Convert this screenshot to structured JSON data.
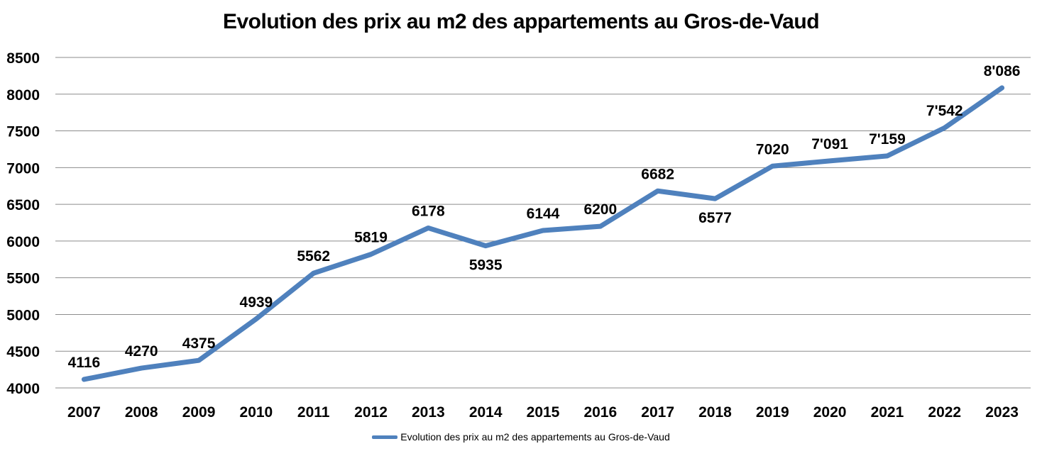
{
  "chart_data": {
    "type": "line",
    "title": "Evolution des prix au m2 des appartements au Gros-de-Vaud",
    "xlabel": "",
    "ylabel": "",
    "categories": [
      "2007",
      "2008",
      "2009",
      "2010",
      "2011",
      "2012",
      "2013",
      "2014",
      "2015",
      "2016",
      "2017",
      "2018",
      "2019",
      "2020",
      "2021",
      "2022",
      "2023"
    ],
    "series": [
      {
        "name": "Evolution des prix au m2 des appartements au Gros-de-Vaud",
        "values": [
          4116,
          4270,
          4375,
          4939,
          5562,
          5819,
          6178,
          5935,
          6144,
          6200,
          6682,
          6577,
          7020,
          7091,
          7159,
          7542,
          8086
        ],
        "labels": [
          "4116",
          "4270",
          "4375",
          "4939",
          "5562",
          "5819",
          "6178",
          "5935",
          "6144",
          "6200",
          "6682",
          "6577",
          "7020",
          "7'091",
          "7'159",
          "7'542",
          "8'086"
        ],
        "label_positions": [
          "above",
          "above",
          "above",
          "above",
          "above",
          "above",
          "above",
          "below",
          "above",
          "above",
          "above",
          "below",
          "above",
          "above",
          "above",
          "above",
          "above"
        ],
        "color": "#4F81BD"
      }
    ],
    "ylim": [
      4000,
      8500
    ],
    "yticks": [
      "4000",
      "4500",
      "5000",
      "5500",
      "6000",
      "6500",
      "7000",
      "7500",
      "8000",
      "8500"
    ],
    "grid": true,
    "legend_position": "bottom"
  }
}
